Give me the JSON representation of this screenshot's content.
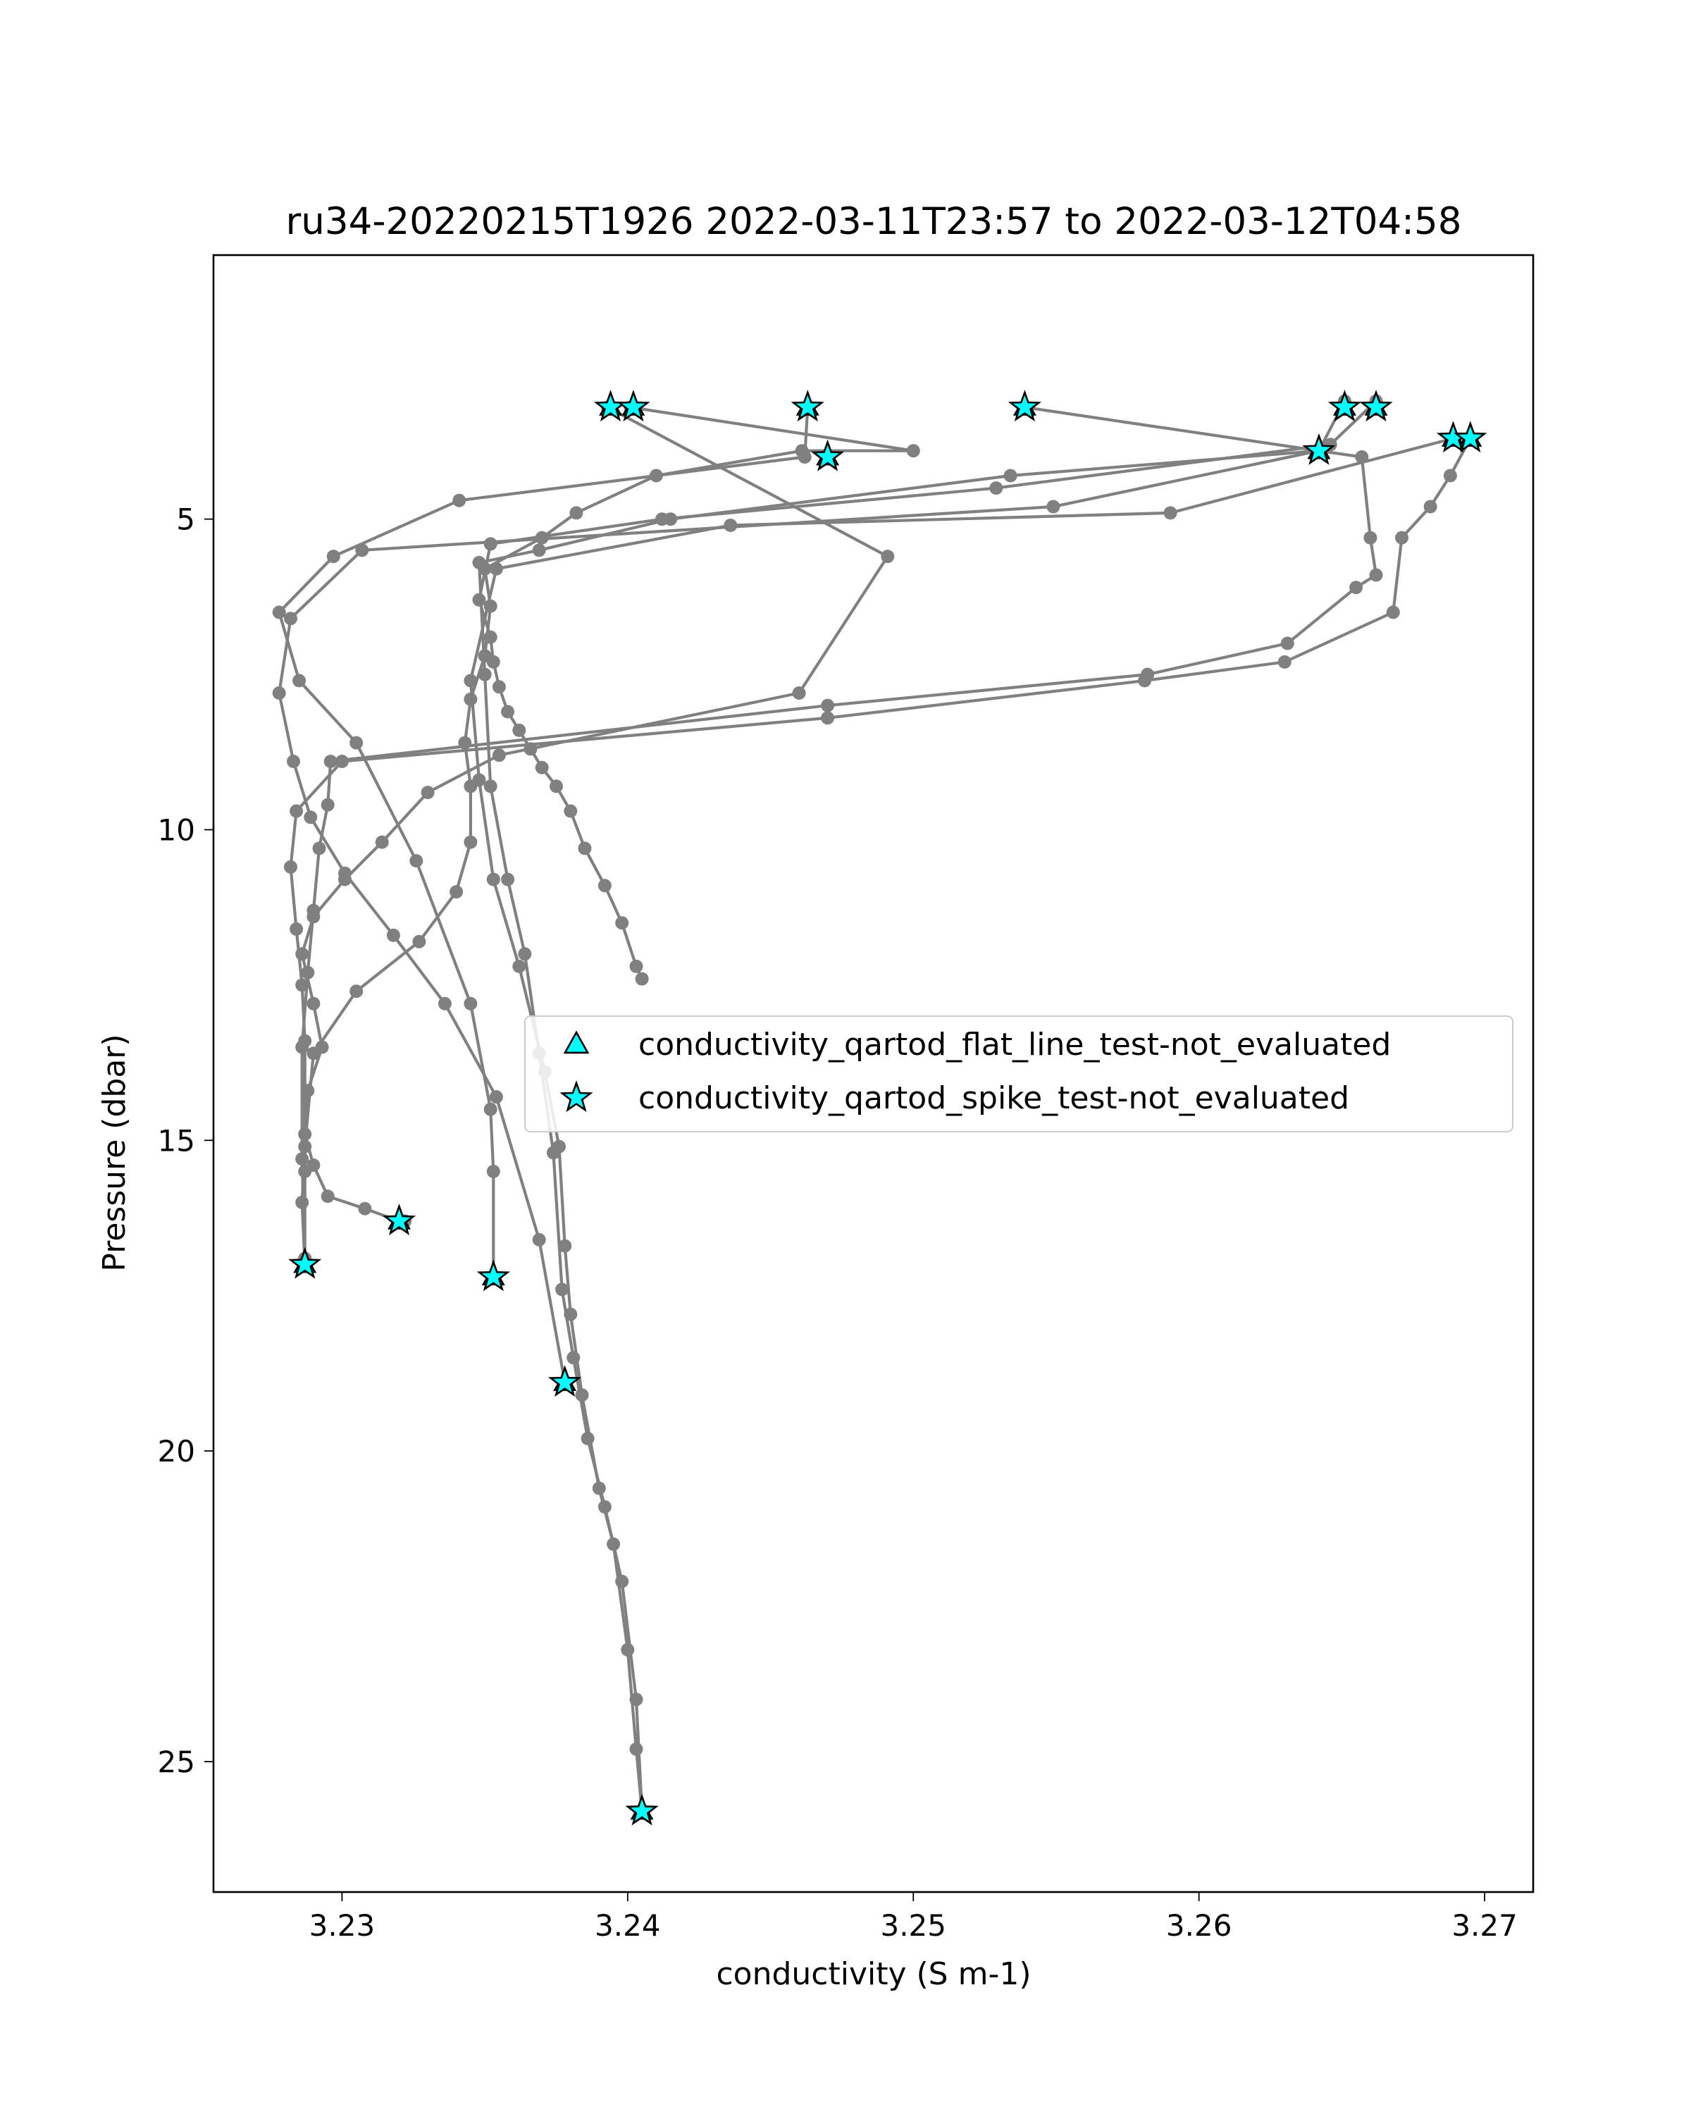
{
  "chart_data": {
    "type": "line",
    "title": "ru34-20220215T1926 2022-03-11T23:57 to 2022-03-12T04:58",
    "xlabel": "conductivity (S m-1)",
    "ylabel": "Pressure (dbar)",
    "xlim": [
      3.2255,
      3.2717
    ],
    "ylim": [
      27.1,
      0.75
    ],
    "y_inverted": true,
    "grid": false,
    "xticks": [
      3.23,
      3.24,
      3.25,
      3.26,
      3.27
    ],
    "xtick_labels": [
      "3.23",
      "3.24",
      "3.25",
      "3.26",
      "3.27"
    ],
    "yticks": [
      5,
      10,
      15,
      20,
      25
    ],
    "ytick_labels": [
      "5",
      "10",
      "15",
      "20",
      "25"
    ],
    "legend": {
      "location": "center-right",
      "entries": [
        {
          "label": "conductivity_qartod_flat_line_test-not_evaluated",
          "marker": "triangle",
          "color": "#00ffff"
        },
        {
          "label": "conductivity_qartod_spike_test-not_evaluated",
          "marker": "star",
          "color": "#00ffff"
        }
      ]
    },
    "series_style": {
      "line_color": "#808080",
      "point_color": "#808080"
    },
    "series": [
      {
        "x": [
          3.2393,
          3.2491,
          3.246,
          3.2355,
          3.233,
          3.2314,
          3.2301,
          3.229,
          3.2286,
          3.229,
          3.2293,
          3.2288,
          3.2287,
          3.229,
          3.2295,
          3.2308,
          3.232,
          3.2322
        ],
        "y": [
          3.2,
          5.6,
          7.8,
          8.8,
          9.4,
          10.2,
          10.8,
          11.4,
          12.0,
          12.8,
          13.5,
          14.2,
          14.9,
          15.4,
          15.9,
          16.1,
          16.3,
          16.3
        ]
      },
      {
        "x": [
          3.2401,
          3.25,
          3.2461,
          3.241,
          3.2382,
          3.237,
          3.235,
          3.2352,
          3.235,
          3.2345,
          3.2343,
          3.2345,
          3.2345,
          3.234,
          3.2327,
          3.2305,
          3.229,
          3.2287,
          3.2286,
          3.2287
        ],
        "y": [
          3.2,
          3.9,
          3.9,
          4.3,
          4.9,
          5.3,
          5.8,
          6.4,
          7.2,
          7.9,
          8.6,
          9.3,
          10.2,
          11.0,
          11.8,
          12.6,
          13.6,
          15.1,
          16.0,
          17.0
        ]
      },
      {
        "x": [
          3.2463,
          3.2462,
          3.2341,
          3.2297,
          3.2278,
          3.2285,
          3.2305,
          3.2326,
          3.2345,
          3.2352,
          3.2353,
          3.2353
        ],
        "y": [
          3.2,
          4.0,
          4.7,
          5.6,
          6.5,
          7.6,
          8.6,
          10.5,
          12.8,
          14.5,
          15.5,
          17.2
        ]
      },
      {
        "x": [
          3.2539,
          3.2642,
          3.2549,
          3.2307,
          3.2282,
          3.2278,
          3.2283,
          3.2289,
          3.2301,
          3.2318,
          3.2336,
          3.2354,
          3.2369,
          3.2378
        ],
        "y": [
          3.2,
          3.9,
          4.8,
          5.5,
          6.6,
          7.8,
          8.9,
          9.8,
          10.7,
          11.7,
          12.8,
          14.3,
          16.6,
          18.9
        ]
      },
      {
        "x": [
          3.2651,
          3.2642,
          3.2534,
          3.2415,
          3.2369,
          3.2348,
          3.235,
          3.2352,
          3.2358,
          3.2364,
          3.2369,
          3.2374,
          3.2377,
          3.2381,
          3.2386,
          3.2392,
          3.2398,
          3.2403,
          3.2405
        ],
        "y": [
          3.1,
          3.9,
          4.3,
          5.0,
          5.5,
          5.7,
          7.5,
          9.3,
          10.8,
          12.0,
          13.6,
          15.2,
          17.4,
          18.5,
          19.8,
          20.9,
          22.1,
          24.0,
          25.8
        ]
      },
      {
        "x": [
          3.2662,
          3.2646,
          3.2529,
          3.2412,
          3.2352,
          3.2348,
          3.2352,
          3.2353,
          3.2355,
          3.2358,
          3.2362,
          3.2366,
          3.237,
          3.2375,
          3.238,
          3.2385,
          3.2392,
          3.2398,
          3.2403,
          3.2405
        ],
        "y": [
          3.1,
          3.8,
          4.5,
          5.0,
          5.4,
          6.3,
          6.9,
          7.3,
          7.7,
          8.1,
          8.4,
          8.7,
          9.0,
          9.3,
          9.7,
          10.3,
          10.9,
          11.5,
          12.2,
          12.4
        ]
      },
      {
        "x": [
          3.2689,
          3.259,
          3.2436,
          3.2354,
          3.2345,
          3.2348,
          3.2353,
          3.2362,
          3.2371,
          3.2376,
          3.2378,
          3.238,
          3.2384,
          3.239,
          3.2395,
          3.24,
          3.2403,
          3.2405
        ],
        "y": [
          3.7,
          4.9,
          5.1,
          5.8,
          7.6,
          9.2,
          10.8,
          12.2,
          13.9,
          15.1,
          16.7,
          17.8,
          19.1,
          20.6,
          21.5,
          23.2,
          24.8,
          25.8
        ]
      },
      {
        "x": [
          3.2695,
          3.2688,
          3.2681,
          3.2671,
          3.2668,
          3.263,
          3.2581,
          3.247,
          3.23,
          3.2284,
          3.2282,
          3.2284,
          3.2286,
          3.2287,
          3.2287,
          3.2287
        ],
        "y": [
          3.7,
          4.3,
          4.8,
          5.3,
          6.5,
          7.3,
          7.6,
          8.2,
          8.9,
          9.7,
          10.6,
          11.6,
          12.5,
          13.4,
          15.5,
          17.0
        ]
      },
      {
        "x": [
          3.2642,
          3.2657,
          3.266,
          3.2662,
          3.2655,
          3.2631,
          3.2582,
          3.247,
          3.2296,
          3.2295,
          3.2292,
          3.229,
          3.2288,
          3.2286,
          3.2286,
          3.2287
        ],
        "y": [
          3.9,
          4.0,
          5.3,
          5.9,
          6.1,
          7.0,
          7.5,
          8.0,
          8.9,
          9.6,
          10.3,
          11.3,
          12.3,
          13.5,
          15.3,
          16.9
        ]
      }
    ],
    "spike_flag_points": [
      {
        "x": 3.2394,
        "y": 3.2
      },
      {
        "x": 3.2402,
        "y": 3.2
      },
      {
        "x": 3.2463,
        "y": 3.2
      },
      {
        "x": 3.2539,
        "y": 3.2
      },
      {
        "x": 3.2651,
        "y": 3.2
      },
      {
        "x": 3.2662,
        "y": 3.2
      },
      {
        "x": 3.247,
        "y": 4.0
      },
      {
        "x": 3.2689,
        "y": 3.7
      },
      {
        "x": 3.2695,
        "y": 3.7
      },
      {
        "x": 3.2642,
        "y": 3.9
      },
      {
        "x": 3.2287,
        "y": 17.0
      },
      {
        "x": 3.232,
        "y": 16.3
      },
      {
        "x": 3.2353,
        "y": 17.2
      },
      {
        "x": 3.2378,
        "y": 18.9
      },
      {
        "x": 3.2405,
        "y": 25.8
      }
    ],
    "flat_line_flag_points": [
      {
        "x": 3.2394,
        "y": 3.2
      },
      {
        "x": 3.2402,
        "y": 3.2
      },
      {
        "x": 3.2463,
        "y": 3.2
      },
      {
        "x": 3.2539,
        "y": 3.2
      },
      {
        "x": 3.2651,
        "y": 3.2
      },
      {
        "x": 3.2662,
        "y": 3.2
      },
      {
        "x": 3.247,
        "y": 4.0
      },
      {
        "x": 3.2689,
        "y": 3.7
      },
      {
        "x": 3.2695,
        "y": 3.7
      },
      {
        "x": 3.2642,
        "y": 3.9
      },
      {
        "x": 3.2287,
        "y": 17.0
      },
      {
        "x": 3.232,
        "y": 16.3
      },
      {
        "x": 3.2353,
        "y": 17.2
      },
      {
        "x": 3.2378,
        "y": 18.9
      },
      {
        "x": 3.2405,
        "y": 25.8
      }
    ]
  }
}
